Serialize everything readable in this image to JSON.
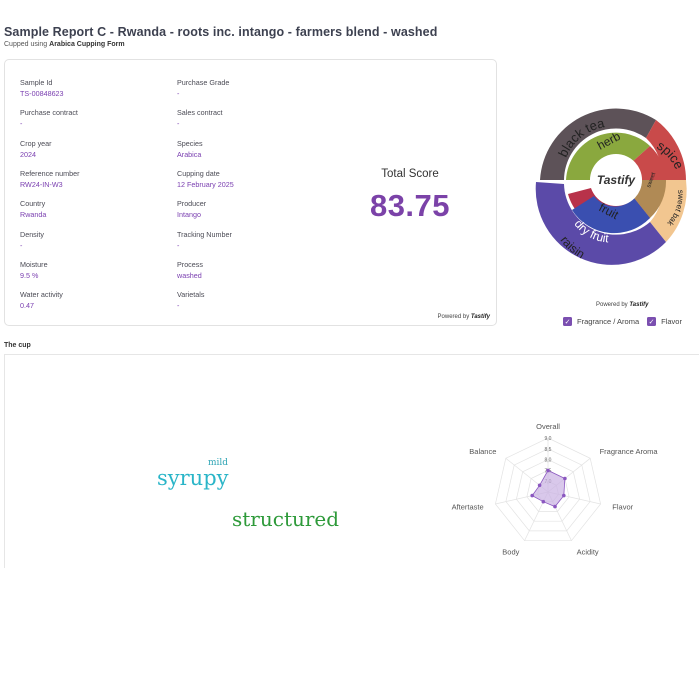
{
  "report": {
    "title": "Sample Report C - Rwanda - roots inc. intango - farmers blend - washed",
    "subtitle_prefix": "Cupped using",
    "form_name": "Arabica Cupping Form"
  },
  "fields": [
    {
      "label": "Sample Id",
      "value": "TS-00848623"
    },
    {
      "label": "Purchase Grade",
      "value": "-"
    },
    {
      "label": "Purchase contract",
      "value": "-"
    },
    {
      "label": "Sales contract",
      "value": "-"
    },
    {
      "label": "Crop year",
      "value": "2024"
    },
    {
      "label": "Species",
      "value": "Arabica"
    },
    {
      "label": "Reference number",
      "value": "RW24-IN-W3"
    },
    {
      "label": "Cupping date",
      "value": "12 February 2025"
    },
    {
      "label": "Country",
      "value": "Rwanda"
    },
    {
      "label": "Producer",
      "value": "Intango"
    },
    {
      "label": "Density",
      "value": "-"
    },
    {
      "label": "Tracking Number",
      "value": "-"
    },
    {
      "label": "Moisture",
      "value": "9.5 %"
    },
    {
      "label": "Process",
      "value": "washed"
    },
    {
      "label": "Water activity",
      "value": "0.47"
    },
    {
      "label": "Varietals",
      "value": "-"
    }
  ],
  "total_score": {
    "label": "Total Score",
    "value": "83.75"
  },
  "powered_by": {
    "text": "Powered by",
    "brand": "Tastify"
  },
  "flavor_wheel": {
    "center_label": "Tastify",
    "inner": [
      {
        "name": "herb",
        "color": "#8aa83e"
      },
      {
        "name": "spice",
        "color": "#c94a4a"
      },
      {
        "name": "sweet",
        "color": "#b08a55"
      },
      {
        "name": "fruit",
        "color": "#b8324a"
      },
      {
        "name": "dry fruit",
        "color": "#3a4fb0"
      }
    ],
    "outer": [
      {
        "name": "black tea",
        "color": "#5d5258"
      },
      {
        "name": "spice",
        "color": "#c94a4a"
      },
      {
        "name": "sweet baked pastry",
        "color": "#f2c690"
      },
      {
        "name": "raisin",
        "color": "#5b4aa8"
      }
    ],
    "legend": [
      {
        "label": "Fragrance / Aroma",
        "checked": true
      },
      {
        "label": "Flavor",
        "checked": true
      }
    ]
  },
  "cup": {
    "label": "The cup",
    "words": [
      {
        "text": "mild",
        "color": "#2fa5b5"
      },
      {
        "text": "syrupy",
        "color": "#2ab5c8"
      },
      {
        "text": "structured",
        "color": "#2e9a3a"
      }
    ]
  },
  "radar": {
    "axes": [
      "Overall",
      "Fragrance Aroma",
      "Flavor",
      "Acidity",
      "Body",
      "Aftertaste",
      "Balance"
    ],
    "ticks": [
      "9,0",
      "8,5",
      "8,0",
      "7,5",
      "7,0"
    ],
    "min": 6.5,
    "max": 9.0,
    "values": [
      7.5,
      7.5,
      7.25,
      7.25,
      7.0,
      7.25,
      7.0
    ],
    "fill": "#c9b0e3",
    "stroke": "#8b57c0"
  }
}
